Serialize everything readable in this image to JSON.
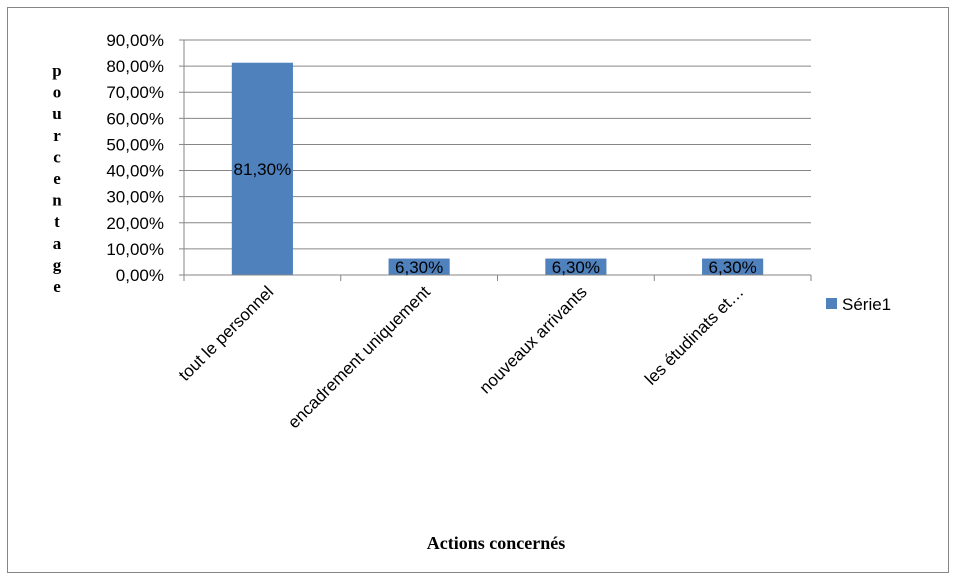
{
  "chart_data": {
    "type": "bar",
    "categories": [
      "tout le personnel",
      "encadrement uniquement",
      "nouveaux arrivants",
      "les étudinats et…"
    ],
    "series": [
      {
        "name": "Série1",
        "values": [
          81.3,
          6.3,
          6.3,
          6.3
        ],
        "data_labels": [
          "81,30%",
          "6,30%",
          "6,30%",
          "6,30%"
        ],
        "color": "#4F81BD"
      }
    ],
    "y_ticks": [
      "0,00%",
      "10,00%",
      "20,00%",
      "30,00%",
      "40,00%",
      "50,00%",
      "60,00%",
      "70,00%",
      "80,00%",
      "90,00%"
    ],
    "ylim": [
      0,
      90
    ],
    "xlabel": "Actions  concernés",
    "ylabel": "pourcentage",
    "grid": true,
    "legend": "right",
    "colors": {
      "bar": "#4F81BD",
      "grid": "#868686",
      "frame": "#868686",
      "background": "#ffffff"
    }
  }
}
